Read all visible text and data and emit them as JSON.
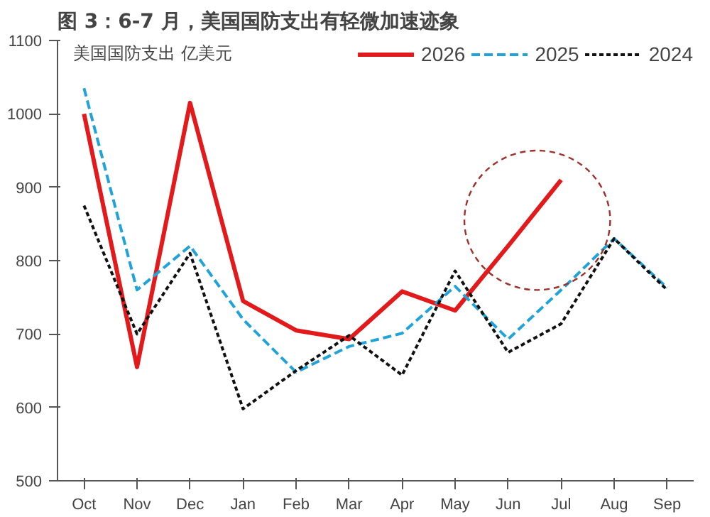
{
  "chart_data": {
    "type": "line",
    "title": "图 3：6-7 月，美国国防支出有轻微加速迹象",
    "subtitle": "美国国防支出 亿美元",
    "categories": [
      "Oct",
      "Nov",
      "Dec",
      "Jan",
      "Feb",
      "Mar",
      "Apr",
      "May",
      "Jun",
      "Jul",
      "Aug",
      "Sep"
    ],
    "series": [
      {
        "name": "2026",
        "color": "#e31a1c",
        "line_style": "solid",
        "values": [
          1000,
          655,
          1015,
          745,
          705,
          693,
          758,
          732,
          820,
          910,
          null,
          null
        ]
      },
      {
        "name": "2025",
        "color": "#1fa3d8",
        "line_style": "dashed",
        "values": [
          1035,
          760,
          820,
          720,
          648,
          683,
          701,
          765,
          693,
          760,
          830,
          763
        ]
      },
      {
        "name": "2024",
        "color": "#111111",
        "line_style": "dotted",
        "values": [
          875,
          700,
          810,
          598,
          650,
          698,
          644,
          786,
          675,
          714,
          830,
          760
        ]
      }
    ],
    "ylim": [
      500,
      1100
    ],
    "yticks": [
      500,
      600,
      700,
      800,
      900,
      1000,
      1100
    ],
    "grid": false,
    "legend": "top right",
    "marker": "none"
  }
}
